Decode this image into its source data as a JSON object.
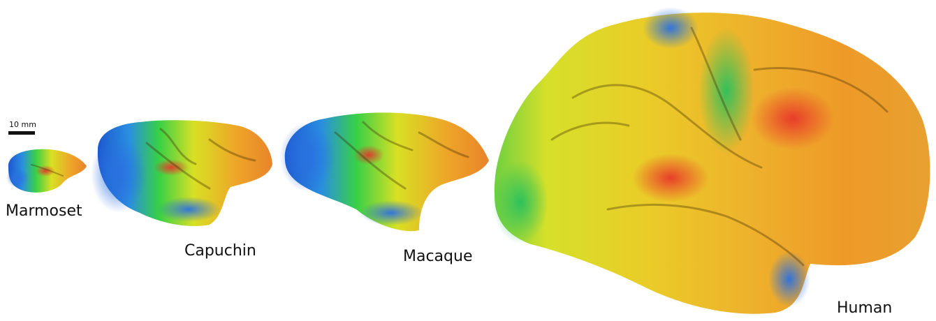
{
  "scale_bar": {
    "label": "10 mm"
  },
  "brains": [
    {
      "label": "Marmoset"
    },
    {
      "label": "Capuchin"
    },
    {
      "label": "Macaque"
    },
    {
      "label": "Human"
    }
  ]
}
